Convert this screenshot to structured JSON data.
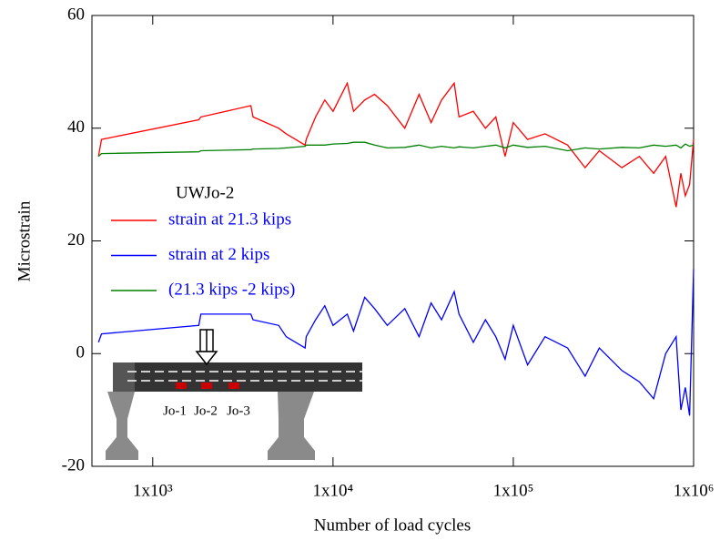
{
  "chart_data": {
    "type": "line",
    "x_label": "Number of load cycles",
    "y_label": "Microstrain",
    "x": [
      500,
      520,
      1800,
      1850,
      3500,
      3600,
      5000,
      5500,
      7000,
      7100,
      8000,
      9000,
      10000,
      12000,
      13000,
      15000,
      17000,
      20000,
      25000,
      30000,
      35000,
      40000,
      47000,
      50000,
      60000,
      70000,
      80000,
      90000,
      100000,
      120000,
      150000,
      200000,
      250000,
      300000,
      400000,
      500000,
      600000,
      700000,
      800000,
      850000,
      900000,
      950000,
      1000000
    ],
    "series": [
      {
        "name": "strain at 21.3 kips",
        "color": "#ff0000",
        "values": [
          35,
          38,
          41.5,
          42,
          44,
          42,
          40,
          39,
          37,
          38,
          42,
          45,
          43,
          48,
          43,
          45,
          46,
          44,
          40,
          46,
          41,
          45,
          48,
          42,
          43,
          40,
          42,
          35,
          41,
          38,
          39,
          37,
          33,
          36,
          33,
          35,
          32,
          35,
          26,
          32,
          28,
          30,
          38
        ]
      },
      {
        "name": "strain at 2 kips",
        "color": "#0000ff",
        "values": [
          2,
          3.5,
          5,
          7,
          7,
          6,
          5,
          3,
          1,
          3,
          6,
          8.5,
          5,
          7,
          4,
          10,
          8,
          5,
          8,
          3,
          9,
          6,
          11,
          7,
          2,
          6,
          3,
          -1,
          5,
          -2,
          3,
          1,
          -4,
          1,
          -3,
          -5,
          -8,
          0,
          3,
          -10,
          -6,
          -11,
          15
        ]
      },
      {
        "name": "(21.3 kips -2 kips)",
        "color": "#008000",
        "values": [
          35,
          35.5,
          35.8,
          36,
          36.2,
          36.3,
          36.4,
          36.5,
          36.8,
          37,
          37,
          37,
          37.2,
          37.3,
          37.5,
          37.5,
          37,
          36.5,
          36.6,
          37,
          36.5,
          36.8,
          36.5,
          36.7,
          36.5,
          36.8,
          37,
          36.5,
          37,
          36.6,
          36.8,
          36,
          36.5,
          36.3,
          36.6,
          36.5,
          37,
          36.8,
          37,
          36.5,
          37.2,
          36.8,
          37
        ]
      }
    ],
    "legend_title": "UWJo-2",
    "legend_text_color": "#0000ff",
    "xscale": "log",
    "xlim": [
      460,
      1000000
    ],
    "xticks": [
      {
        "value": 1000,
        "label": "1x10³"
      },
      {
        "value": 10000,
        "label": "1x10⁴"
      },
      {
        "value": 100000,
        "label": "1x10⁵"
      },
      {
        "value": 1000000,
        "label": "1x10⁶"
      }
    ],
    "ylim": [
      -20,
      60
    ],
    "yticks": [
      -20,
      0,
      20,
      40,
      60
    ],
    "beam_labels": [
      "Jo-1",
      "Jo-2",
      "Jo-3"
    ]
  }
}
